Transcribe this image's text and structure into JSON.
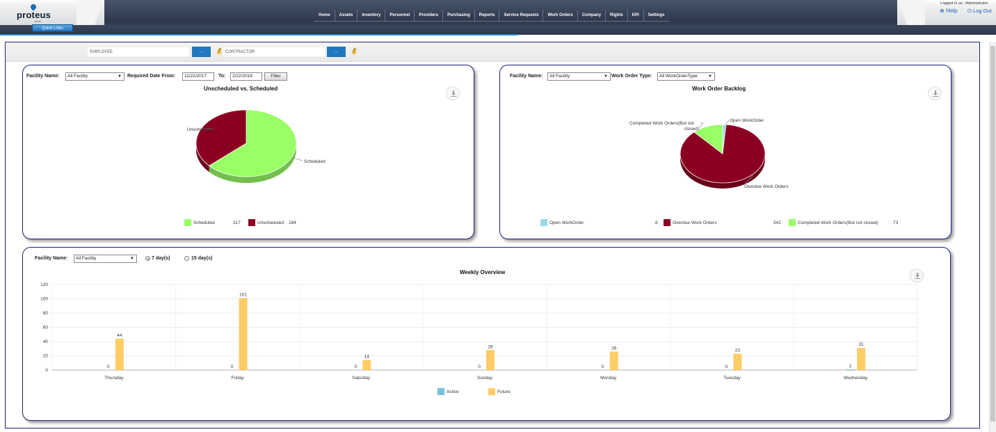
{
  "header": {
    "logo_name": "proteus",
    "logo_sub": "mms",
    "quick_links": "Quick Links",
    "nav": [
      "Home",
      "Assets",
      "Inventory",
      "Personnel",
      "Providers",
      "Purchasing",
      "Reports",
      "Service Requests",
      "Work Orders",
      "Company",
      "Rights",
      "KPI",
      "Settings"
    ],
    "logged_in": "Logged In as : Administrator",
    "help": "Help",
    "logout": "Log Out"
  },
  "filter_bar": {
    "employee_placeholder": "EMPLOYEE",
    "employee_button": "...",
    "contractor_placeholder": "CONTRACTOR",
    "contractor_button": "..."
  },
  "panel1": {
    "facility_label": "Facility Name:",
    "facility_value": "All Facility",
    "date_from_label": "Required Date From:",
    "date_from": "11/22/2017",
    "to_label": "To:",
    "date_to": "2/22/2018",
    "filter_button": "Filter",
    "title": "Unscheduled vs. Scheduled",
    "chart_data": {
      "type": "pie",
      "title": "Unscheduled vs. Scheduled",
      "slices": [
        {
          "label": "Scheduled",
          "value": 317,
          "color": "#99ff66"
        },
        {
          "label": "Unscheduled",
          "value": 184,
          "color": "#8b0020"
        }
      ],
      "legend_position": "bottom"
    }
  },
  "panel2": {
    "facility_label": "Facility Name:",
    "facility_value": "All Facility",
    "wo_type_label": "Work Order Type:",
    "wo_type_value": "All WorkOrderType",
    "title": "Work Order Backlog",
    "chart_data": {
      "type": "pie",
      "title": "Work Order Backlog",
      "slices": [
        {
          "label": "Open WorkOrder",
          "value": 8,
          "color": "#99d9ea"
        },
        {
          "label": "Overdue Work Orders",
          "value": 542,
          "color": "#8b0020"
        },
        {
          "label": "Completed Work Orders(But not closed)",
          "value": 73,
          "color": "#99ff66"
        }
      ],
      "callouts": [
        "Open WorkOrder",
        "Overdue Work Orders",
        "Completed Work Orders(But not",
        "closed)"
      ],
      "legend_position": "bottom"
    }
  },
  "panel3": {
    "facility_label": "Facility Name:",
    "facility_value": "All Facility",
    "radio_7": "7 day(s)",
    "radio_15": "15 day(s)",
    "title": "Weekly Overview",
    "chart_data": {
      "type": "bar",
      "title": "Weekly Overview",
      "categories": [
        "Thursday",
        "Friday",
        "Saturday",
        "Sunday",
        "Monday",
        "Tuesday",
        "Wednesday"
      ],
      "series": [
        {
          "name": "Active",
          "values": [
            0,
            0,
            0,
            0,
            0,
            0,
            1
          ],
          "color": "#78c0d8"
        },
        {
          "name": "Future",
          "values": [
            44,
            101,
            14,
            28,
            26,
            23,
            31
          ],
          "color": "#ffcc66"
        }
      ],
      "ylim": [
        0,
        120
      ],
      "yticks": [
        "0",
        "20",
        "40",
        "60",
        "80",
        "100",
        "120"
      ],
      "grid": true,
      "legend_position": "bottom"
    }
  }
}
